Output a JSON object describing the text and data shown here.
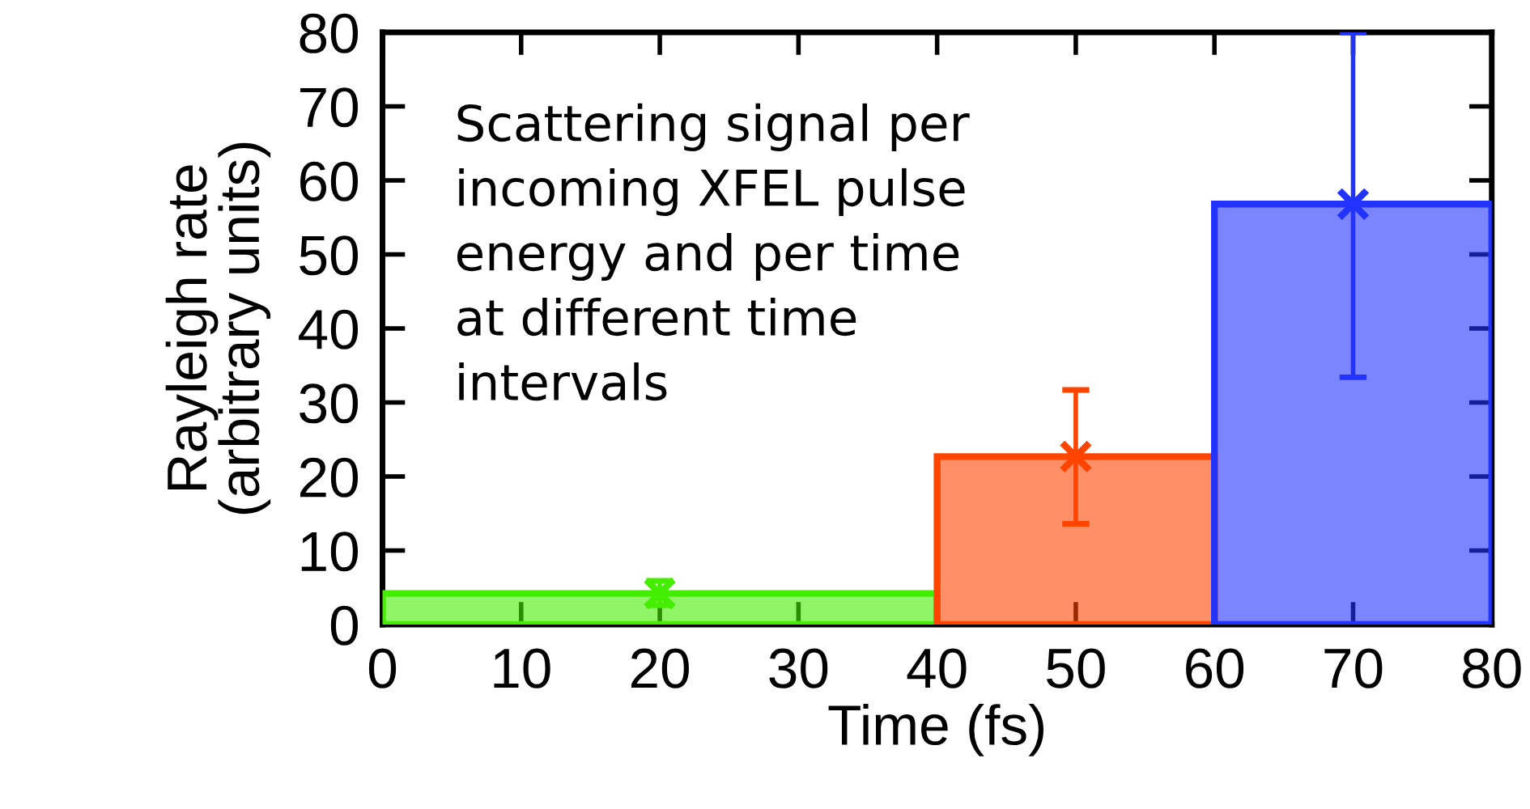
{
  "chart_data": {
    "type": "histogram",
    "xlabel": "Time (fs)",
    "ylabel": "Rayleigh rate\n(arbitrary units)",
    "bins": [
      0,
      40,
      60,
      80
    ],
    "values": [
      4.2,
      22.7,
      56.8
    ],
    "colors": [
      "#44ee00",
      "#ff4400",
      "#2233ff"
    ],
    "series": [
      {
        "type": "scatter",
        "x": [
          20,
          50,
          70
        ],
        "values": [
          4.2,
          22.7,
          56.8
        ],
        "colors": [
          "#44ee00",
          "#ff4400",
          "#2233ff"
        ],
        "errors": [
          [
            2.6,
            5.9
          ],
          [
            13.6,
            31.7
          ],
          [
            33.4,
            80
          ]
        ],
        "marker": "cross"
      }
    ],
    "xlim": [
      0,
      80
    ],
    "xticks": [
      0,
      10,
      20,
      30,
      40,
      50,
      60,
      70,
      80
    ],
    "ylim": [
      0,
      80
    ],
    "yticks": [
      0,
      10,
      20,
      30,
      40,
      50,
      60,
      70,
      80
    ],
    "grid": false,
    "annotations": [
      "Scattering signal per\nincoming XFEL pulse\nenergy and per time\nat different time\nintervals"
    ]
  }
}
